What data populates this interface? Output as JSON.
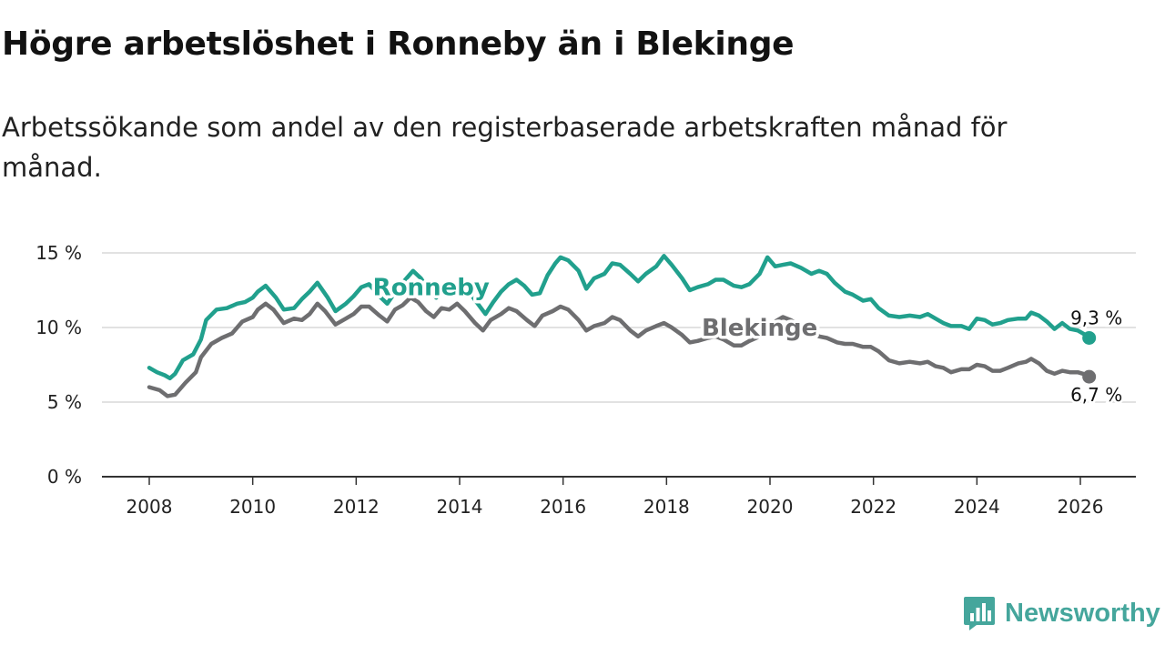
{
  "header": {
    "title": "Högre arbetslöshet i Ronneby än i Blekinge",
    "subtitle": "Arbetssökande som andel av den registerbaserade arbetskraften månad för månad."
  },
  "brand": {
    "name": "Newsworthy",
    "icon": "newsworthy-logo-icon",
    "color": "#45a69c"
  },
  "chart_data": {
    "type": "line",
    "title": "Högre arbetslöshet i Ronneby än i Blekinge",
    "subtitle": "Arbetssökande som andel av den registerbaserade arbetskraften månad för månad.",
    "xlabel": "",
    "ylabel": "",
    "xlim": [
      2007.75,
      2027.0
    ],
    "ylim": [
      0,
      15
    ],
    "grid": true,
    "y_ticks": [
      {
        "value": 0,
        "label": "0 %"
      },
      {
        "value": 5,
        "label": "5 %"
      },
      {
        "value": 10,
        "label": "10 %"
      },
      {
        "value": 15,
        "label": "15 %"
      }
    ],
    "x_ticks": [
      {
        "value": 2008,
        "label": "2008"
      },
      {
        "value": 2010,
        "label": "2010"
      },
      {
        "value": 2012,
        "label": "2012"
      },
      {
        "value": 2014,
        "label": "2014"
      },
      {
        "value": 2016,
        "label": "2016"
      },
      {
        "value": 2018,
        "label": "2018"
      },
      {
        "value": 2020,
        "label": "2020"
      },
      {
        "value": 2022,
        "label": "2022"
      },
      {
        "value": 2024,
        "label": "2024"
      },
      {
        "value": 2026,
        "label": "2026"
      }
    ],
    "series": [
      {
        "name": "Blekinge",
        "color": "#6e6e70",
        "end_label": "6,7 %",
        "points": [
          [
            2008.0,
            6.0
          ],
          [
            2008.2,
            5.8
          ],
          [
            2008.35,
            5.4
          ],
          [
            2008.5,
            5.5
          ],
          [
            2008.7,
            6.3
          ],
          [
            2008.9,
            7.0
          ],
          [
            2009.0,
            8.0
          ],
          [
            2009.2,
            8.9
          ],
          [
            2009.4,
            9.3
          ],
          [
            2009.6,
            9.6
          ],
          [
            2009.8,
            10.4
          ],
          [
            2010.0,
            10.7
          ],
          [
            2010.1,
            11.2
          ],
          [
            2010.25,
            11.6
          ],
          [
            2010.4,
            11.2
          ],
          [
            2010.6,
            10.3
          ],
          [
            2010.8,
            10.6
          ],
          [
            2010.95,
            10.5
          ],
          [
            2011.1,
            10.9
          ],
          [
            2011.25,
            11.6
          ],
          [
            2011.4,
            11.1
          ],
          [
            2011.6,
            10.2
          ],
          [
            2011.8,
            10.6
          ],
          [
            2011.95,
            10.9
          ],
          [
            2012.1,
            11.4
          ],
          [
            2012.25,
            11.4
          ],
          [
            2012.45,
            10.8
          ],
          [
            2012.6,
            10.4
          ],
          [
            2012.75,
            11.2
          ],
          [
            2012.9,
            11.5
          ],
          [
            2013.05,
            12.0
          ],
          [
            2013.2,
            11.7
          ],
          [
            2013.35,
            11.1
          ],
          [
            2013.5,
            10.7
          ],
          [
            2013.65,
            11.3
          ],
          [
            2013.8,
            11.2
          ],
          [
            2013.95,
            11.6
          ],
          [
            2014.1,
            11.1
          ],
          [
            2014.3,
            10.3
          ],
          [
            2014.45,
            9.8
          ],
          [
            2014.6,
            10.5
          ],
          [
            2014.8,
            10.9
          ],
          [
            2014.95,
            11.3
          ],
          [
            2015.1,
            11.1
          ],
          [
            2015.3,
            10.5
          ],
          [
            2015.45,
            10.1
          ],
          [
            2015.6,
            10.8
          ],
          [
            2015.8,
            11.1
          ],
          [
            2015.95,
            11.4
          ],
          [
            2016.1,
            11.2
          ],
          [
            2016.3,
            10.5
          ],
          [
            2016.45,
            9.8
          ],
          [
            2016.6,
            10.1
          ],
          [
            2016.8,
            10.3
          ],
          [
            2016.95,
            10.7
          ],
          [
            2017.1,
            10.5
          ],
          [
            2017.3,
            9.8
          ],
          [
            2017.45,
            9.4
          ],
          [
            2017.6,
            9.8
          ],
          [
            2017.8,
            10.1
          ],
          [
            2017.95,
            10.3
          ],
          [
            2018.1,
            10.0
          ],
          [
            2018.3,
            9.5
          ],
          [
            2018.45,
            9.0
          ],
          [
            2018.6,
            9.1
          ],
          [
            2018.8,
            9.3
          ],
          [
            2018.95,
            9.4
          ],
          [
            2019.1,
            9.2
          ],
          [
            2019.3,
            8.8
          ],
          [
            2019.45,
            8.8
          ],
          [
            2019.6,
            9.1
          ],
          [
            2019.8,
            9.4
          ],
          [
            2019.95,
            10.0
          ],
          [
            2020.1,
            10.4
          ],
          [
            2020.25,
            10.7
          ],
          [
            2020.4,
            10.5
          ],
          [
            2020.6,
            10.1
          ],
          [
            2020.8,
            9.7
          ],
          [
            2020.95,
            9.4
          ],
          [
            2021.1,
            9.3
          ],
          [
            2021.3,
            9.0
          ],
          [
            2021.45,
            8.9
          ],
          [
            2021.6,
            8.9
          ],
          [
            2021.8,
            8.7
          ],
          [
            2021.95,
            8.7
          ],
          [
            2022.1,
            8.4
          ],
          [
            2022.3,
            7.8
          ],
          [
            2022.5,
            7.6
          ],
          [
            2022.7,
            7.7
          ],
          [
            2022.9,
            7.6
          ],
          [
            2023.05,
            7.7
          ],
          [
            2023.2,
            7.4
          ],
          [
            2023.35,
            7.3
          ],
          [
            2023.5,
            7.0
          ],
          [
            2023.7,
            7.2
          ],
          [
            2023.85,
            7.2
          ],
          [
            2024.0,
            7.5
          ],
          [
            2024.15,
            7.4
          ],
          [
            2024.3,
            7.1
          ],
          [
            2024.45,
            7.1
          ],
          [
            2024.6,
            7.3
          ],
          [
            2024.8,
            7.6
          ],
          [
            2024.95,
            7.7
          ],
          [
            2025.05,
            7.9
          ],
          [
            2025.2,
            7.6
          ],
          [
            2025.35,
            7.1
          ],
          [
            2025.5,
            6.9
          ],
          [
            2025.65,
            7.1
          ],
          [
            2025.8,
            7.0
          ],
          [
            2025.95,
            7.0
          ],
          [
            2026.1,
            6.85
          ],
          [
            2026.17,
            6.7
          ]
        ]
      },
      {
        "name": "Ronneby",
        "color": "#21a08d",
        "end_label": "9,3 %",
        "points": [
          [
            2008.0,
            7.3
          ],
          [
            2008.15,
            7.0
          ],
          [
            2008.3,
            6.8
          ],
          [
            2008.4,
            6.6
          ],
          [
            2008.5,
            6.9
          ],
          [
            2008.65,
            7.8
          ],
          [
            2008.85,
            8.2
          ],
          [
            2009.0,
            9.2
          ],
          [
            2009.1,
            10.5
          ],
          [
            2009.3,
            11.2
          ],
          [
            2009.5,
            11.3
          ],
          [
            2009.7,
            11.6
          ],
          [
            2009.85,
            11.7
          ],
          [
            2010.0,
            12.0
          ],
          [
            2010.1,
            12.4
          ],
          [
            2010.25,
            12.8
          ],
          [
            2010.45,
            12.0
          ],
          [
            2010.6,
            11.2
          ],
          [
            2010.8,
            11.3
          ],
          [
            2010.95,
            11.9
          ],
          [
            2011.1,
            12.4
          ],
          [
            2011.25,
            13.0
          ],
          [
            2011.45,
            12.0
          ],
          [
            2011.6,
            11.1
          ],
          [
            2011.8,
            11.6
          ],
          [
            2011.95,
            12.1
          ],
          [
            2012.1,
            12.7
          ],
          [
            2012.25,
            12.9
          ],
          [
            2012.45,
            12.1
          ],
          [
            2012.6,
            11.6
          ],
          [
            2012.8,
            12.6
          ],
          [
            2012.95,
            13.2
          ],
          [
            2013.1,
            13.8
          ],
          [
            2013.25,
            13.3
          ],
          [
            2013.4,
            12.5
          ],
          [
            2013.55,
            12.0
          ],
          [
            2013.7,
            12.7
          ],
          [
            2013.9,
            12.8
          ],
          [
            2014.05,
            13.0
          ],
          [
            2014.2,
            12.3
          ],
          [
            2014.35,
            11.6
          ],
          [
            2014.5,
            10.9
          ],
          [
            2014.65,
            11.7
          ],
          [
            2014.8,
            12.4
          ],
          [
            2014.95,
            12.9
          ],
          [
            2015.1,
            13.2
          ],
          [
            2015.25,
            12.8
          ],
          [
            2015.4,
            12.2
          ],
          [
            2015.55,
            12.3
          ],
          [
            2015.7,
            13.5
          ],
          [
            2015.85,
            14.3
          ],
          [
            2015.95,
            14.7
          ],
          [
            2016.1,
            14.5
          ],
          [
            2016.3,
            13.8
          ],
          [
            2016.45,
            12.6
          ],
          [
            2016.6,
            13.3
          ],
          [
            2016.8,
            13.6
          ],
          [
            2016.95,
            14.3
          ],
          [
            2017.1,
            14.2
          ],
          [
            2017.3,
            13.6
          ],
          [
            2017.45,
            13.1
          ],
          [
            2017.6,
            13.6
          ],
          [
            2017.8,
            14.1
          ],
          [
            2017.95,
            14.8
          ],
          [
            2018.1,
            14.2
          ],
          [
            2018.3,
            13.3
          ],
          [
            2018.45,
            12.5
          ],
          [
            2018.6,
            12.7
          ],
          [
            2018.8,
            12.9
          ],
          [
            2018.95,
            13.2
          ],
          [
            2019.1,
            13.2
          ],
          [
            2019.3,
            12.8
          ],
          [
            2019.45,
            12.7
          ],
          [
            2019.6,
            12.9
          ],
          [
            2019.8,
            13.6
          ],
          [
            2019.95,
            14.7
          ],
          [
            2020.1,
            14.1
          ],
          [
            2020.25,
            14.2
          ],
          [
            2020.4,
            14.3
          ],
          [
            2020.6,
            14.0
          ],
          [
            2020.8,
            13.6
          ],
          [
            2020.95,
            13.8
          ],
          [
            2021.1,
            13.6
          ],
          [
            2021.25,
            13.0
          ],
          [
            2021.45,
            12.4
          ],
          [
            2021.6,
            12.2
          ],
          [
            2021.8,
            11.8
          ],
          [
            2021.95,
            11.9
          ],
          [
            2022.1,
            11.3
          ],
          [
            2022.3,
            10.8
          ],
          [
            2022.5,
            10.7
          ],
          [
            2022.7,
            10.8
          ],
          [
            2022.9,
            10.7
          ],
          [
            2023.05,
            10.9
          ],
          [
            2023.2,
            10.6
          ],
          [
            2023.35,
            10.3
          ],
          [
            2023.5,
            10.1
          ],
          [
            2023.7,
            10.1
          ],
          [
            2023.85,
            9.9
          ],
          [
            2024.0,
            10.6
          ],
          [
            2024.15,
            10.5
          ],
          [
            2024.3,
            10.2
          ],
          [
            2024.45,
            10.3
          ],
          [
            2024.6,
            10.5
          ],
          [
            2024.8,
            10.6
          ],
          [
            2024.95,
            10.6
          ],
          [
            2025.05,
            11.0
          ],
          [
            2025.2,
            10.8
          ],
          [
            2025.35,
            10.4
          ],
          [
            2025.5,
            9.9
          ],
          [
            2025.65,
            10.3
          ],
          [
            2025.8,
            9.9
          ],
          [
            2025.95,
            9.8
          ],
          [
            2026.1,
            9.5
          ],
          [
            2026.17,
            9.3
          ]
        ]
      }
    ]
  }
}
